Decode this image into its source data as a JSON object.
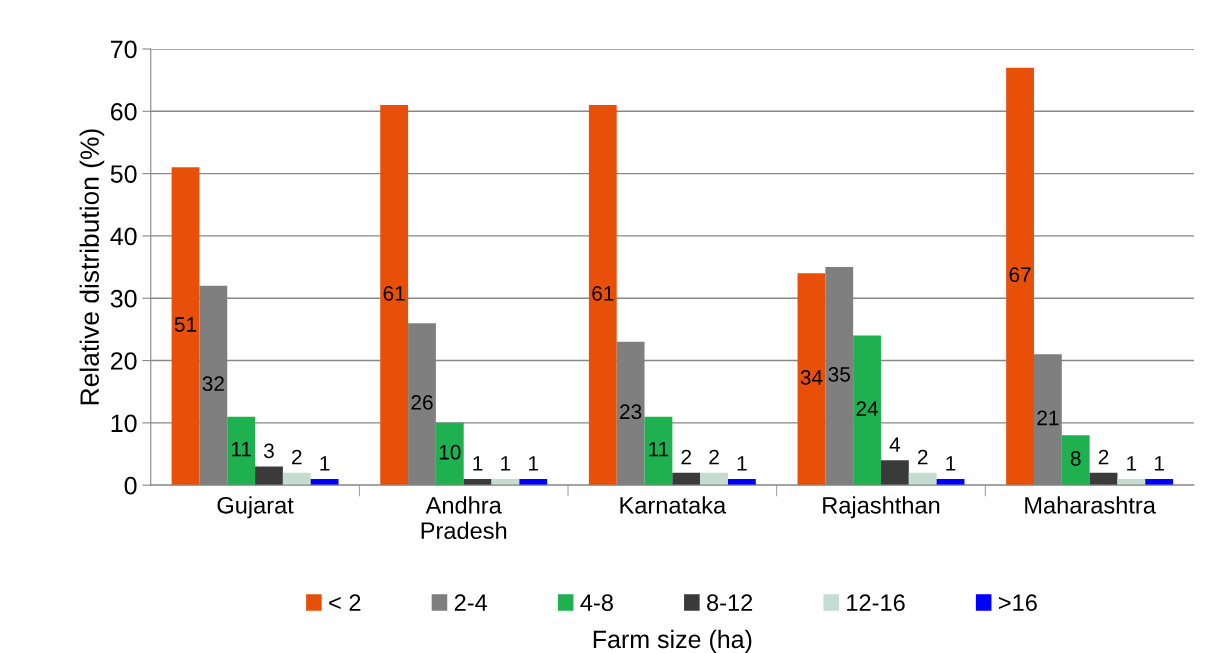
{
  "chart_data": {
    "type": "bar",
    "ylabel": "Relative distribution (%)",
    "xlabel": "Farm size (ha)",
    "categories": [
      "Gujarat",
      "Andhra\nPradesh",
      "Karnataka",
      "Rajashthan",
      "Maharashtra"
    ],
    "series": [
      {
        "name": "< 2",
        "color": "#e8500a",
        "values": [
          51,
          61,
          61,
          34,
          67
        ]
      },
      {
        "name": "2-4",
        "color": "#7f7f7f",
        "values": [
          32,
          26,
          23,
          35,
          21
        ]
      },
      {
        "name": "4-8",
        "color": "#1fb050",
        "values": [
          11,
          10,
          11,
          24,
          8
        ]
      },
      {
        "name": "8-12",
        "color": "#3a3a3a",
        "values": [
          3,
          1,
          2,
          4,
          2
        ]
      },
      {
        "name": "12-16",
        "color": "#c4dcd2",
        "values": [
          2,
          1,
          2,
          2,
          1
        ]
      },
      {
        "name": ">16",
        "color": "#0000ff",
        "values": [
          1,
          1,
          1,
          1,
          1
        ]
      }
    ],
    "ylim": [
      0,
      70
    ],
    "yticks": [
      0,
      10,
      20,
      30,
      40,
      50,
      60,
      70
    ],
    "grid": "y",
    "legend": "bottom",
    "data_labels": true
  }
}
